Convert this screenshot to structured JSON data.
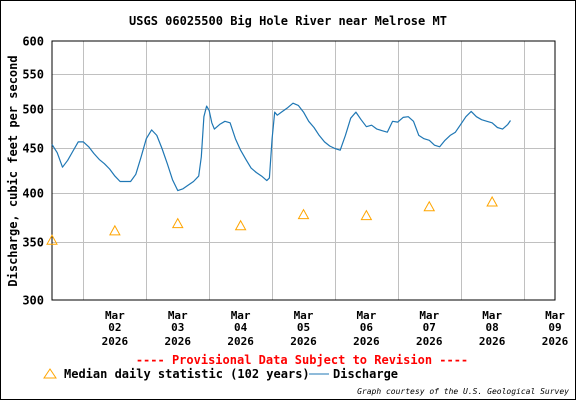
{
  "chart_data": {
    "type": "line",
    "title": "USGS 06025500 Big Hole River near Melrose MT",
    "ylabel": "Discharge, cubic feet per second",
    "ylim": [
      300,
      600
    ],
    "y_scale": "log",
    "y_ticks": [
      {
        "value": 300,
        "label": "300"
      },
      {
        "value": 350,
        "label": "350"
      },
      {
        "value": 400,
        "label": "400"
      },
      {
        "value": 450,
        "label": "450"
      },
      {
        "value": 500,
        "label": "500"
      },
      {
        "value": 550,
        "label": "550"
      },
      {
        "value": 600,
        "label": "600"
      }
    ],
    "xlim": [
      "2026-03-01T12:00",
      "2026-03-09T12:00"
    ],
    "x_ticks": [
      {
        "date": "2026-03-02",
        "month": "Mar",
        "day": "02",
        "year": "2026"
      },
      {
        "date": "2026-03-03",
        "month": "Mar",
        "day": "03",
        "year": "2026"
      },
      {
        "date": "2026-03-04",
        "month": "Mar",
        "day": "04",
        "year": "2026"
      },
      {
        "date": "2026-03-05",
        "month": "Mar",
        "day": "05",
        "year": "2026"
      },
      {
        "date": "2026-03-06",
        "month": "Mar",
        "day": "06",
        "year": "2026"
      },
      {
        "date": "2026-03-07",
        "month": "Mar",
        "day": "07",
        "year": "2026"
      },
      {
        "date": "2026-03-08",
        "month": "Mar",
        "day": "08",
        "year": "2026"
      },
      {
        "date": "2026-03-09",
        "month": "Mar",
        "day": "09",
        "year": "2026"
      }
    ],
    "grid": true,
    "colors": {
      "discharge": "#1f77b4",
      "median": "#ffa500",
      "grid": "#c0c0c0",
      "provisional": "#ff0000"
    },
    "series": [
      {
        "name": "Discharge",
        "kind": "line",
        "points": [
          [
            "2026-03-01T12:00",
            455
          ],
          [
            "2026-03-01T14:00",
            445
          ],
          [
            "2026-03-01T16:00",
            428
          ],
          [
            "2026-03-01T18:00",
            436
          ],
          [
            "2026-03-01T20:00",
            447
          ],
          [
            "2026-03-01T22:00",
            458
          ],
          [
            "2026-03-02T00:00",
            458
          ],
          [
            "2026-03-02T02:00",
            452
          ],
          [
            "2026-03-02T04:00",
            444
          ],
          [
            "2026-03-02T06:00",
            437
          ],
          [
            "2026-03-02T08:00",
            432
          ],
          [
            "2026-03-02T10:00",
            426
          ],
          [
            "2026-03-02T12:00",
            418
          ],
          [
            "2026-03-02T14:00",
            412
          ],
          [
            "2026-03-02T16:00",
            412
          ],
          [
            "2026-03-02T18:00",
            412
          ],
          [
            "2026-03-02T20:00",
            420
          ],
          [
            "2026-03-02T22:00",
            440
          ],
          [
            "2026-03-03T00:00",
            462
          ],
          [
            "2026-03-03T02:00",
            473
          ],
          [
            "2026-03-03T04:00",
            466
          ],
          [
            "2026-03-03T06:00",
            450
          ],
          [
            "2026-03-03T08:00",
            432
          ],
          [
            "2026-03-03T10:00",
            414
          ],
          [
            "2026-03-03T12:00",
            402
          ],
          [
            "2026-03-03T14:00",
            404
          ],
          [
            "2026-03-03T16:00",
            408
          ],
          [
            "2026-03-03T18:00",
            412
          ],
          [
            "2026-03-03T20:00",
            418
          ],
          [
            "2026-03-03T21:00",
            440
          ],
          [
            "2026-03-03T22:00",
            490
          ],
          [
            "2026-03-03T23:00",
            504
          ],
          [
            "2026-03-04T00:00",
            498
          ],
          [
            "2026-03-04T01:00",
            482
          ],
          [
            "2026-03-04T02:00",
            474
          ],
          [
            "2026-03-04T04:00",
            480
          ],
          [
            "2026-03-04T06:00",
            484
          ],
          [
            "2026-03-04T08:00",
            482
          ],
          [
            "2026-03-04T10:00",
            462
          ],
          [
            "2026-03-04T12:00",
            448
          ],
          [
            "2026-03-04T14:00",
            437
          ],
          [
            "2026-03-04T16:00",
            427
          ],
          [
            "2026-03-04T18:00",
            422
          ],
          [
            "2026-03-04T20:00",
            418
          ],
          [
            "2026-03-04T22:00",
            413
          ],
          [
            "2026-03-04T23:00",
            416
          ],
          [
            "2026-03-05T00:00",
            462
          ],
          [
            "2026-03-05T01:00",
            496
          ],
          [
            "2026-03-05T02:00",
            492
          ],
          [
            "2026-03-05T04:00",
            497
          ],
          [
            "2026-03-05T06:00",
            502
          ],
          [
            "2026-03-05T08:00",
            508
          ],
          [
            "2026-03-05T10:00",
            505
          ],
          [
            "2026-03-05T12:00",
            496
          ],
          [
            "2026-03-05T14:00",
            484
          ],
          [
            "2026-03-05T16:00",
            476
          ],
          [
            "2026-03-05T18:00",
            466
          ],
          [
            "2026-03-05T20:00",
            458
          ],
          [
            "2026-03-05T22:00",
            453
          ],
          [
            "2026-03-06T00:00",
            450
          ],
          [
            "2026-03-06T02:00",
            448
          ],
          [
            "2026-03-06T04:00",
            466
          ],
          [
            "2026-03-06T06:00",
            488
          ],
          [
            "2026-03-06T08:00",
            496
          ],
          [
            "2026-03-06T10:00",
            486
          ],
          [
            "2026-03-06T12:00",
            477
          ],
          [
            "2026-03-06T14:00",
            479
          ],
          [
            "2026-03-06T16:00",
            474
          ],
          [
            "2026-03-06T18:00",
            472
          ],
          [
            "2026-03-06T20:00",
            470
          ],
          [
            "2026-03-06T22:00",
            484
          ],
          [
            "2026-03-07T00:00",
            483
          ],
          [
            "2026-03-07T02:00",
            489
          ],
          [
            "2026-03-07T04:00",
            490
          ],
          [
            "2026-03-07T06:00",
            484
          ],
          [
            "2026-03-07T08:00",
            466
          ],
          [
            "2026-03-07T10:00",
            462
          ],
          [
            "2026-03-07T12:00",
            460
          ],
          [
            "2026-03-07T14:00",
            454
          ],
          [
            "2026-03-07T16:00",
            452
          ],
          [
            "2026-03-07T18:00",
            460
          ],
          [
            "2026-03-07T20:00",
            466
          ],
          [
            "2026-03-07T22:00",
            470
          ],
          [
            "2026-03-08T00:00",
            480
          ],
          [
            "2026-03-08T02:00",
            490
          ],
          [
            "2026-03-08T04:00",
            497
          ],
          [
            "2026-03-08T06:00",
            490
          ],
          [
            "2026-03-08T08:00",
            486
          ],
          [
            "2026-03-08T10:00",
            484
          ],
          [
            "2026-03-08T12:00",
            482
          ],
          [
            "2026-03-08T14:00",
            476
          ],
          [
            "2026-03-08T16:00",
            474
          ],
          [
            "2026-03-08T18:00",
            480
          ],
          [
            "2026-03-08T19:00",
            485
          ]
        ]
      },
      {
        "name": "Median daily statistic (102 years)",
        "kind": "marker",
        "points": [
          [
            "2026-03-01T12:00",
            352
          ],
          [
            "2026-03-02T12:00",
            361
          ],
          [
            "2026-03-03T12:00",
            368
          ],
          [
            "2026-03-04T12:00",
            366
          ],
          [
            "2026-03-05T12:00",
            377
          ],
          [
            "2026-03-06T12:00",
            376
          ],
          [
            "2026-03-07T12:00",
            385
          ],
          [
            "2026-03-08T12:00",
            390
          ]
        ]
      }
    ],
    "provisional_note": "---- Provisional Data Subject to Revision ----",
    "legend": [
      {
        "label": "Median daily statistic (102 years)",
        "symbol": "triangle"
      },
      {
        "label": "Discharge",
        "symbol": "line"
      }
    ],
    "legend_position": "bottom",
    "credit": "Graph courtesy of the U.S. Geological Survey"
  }
}
